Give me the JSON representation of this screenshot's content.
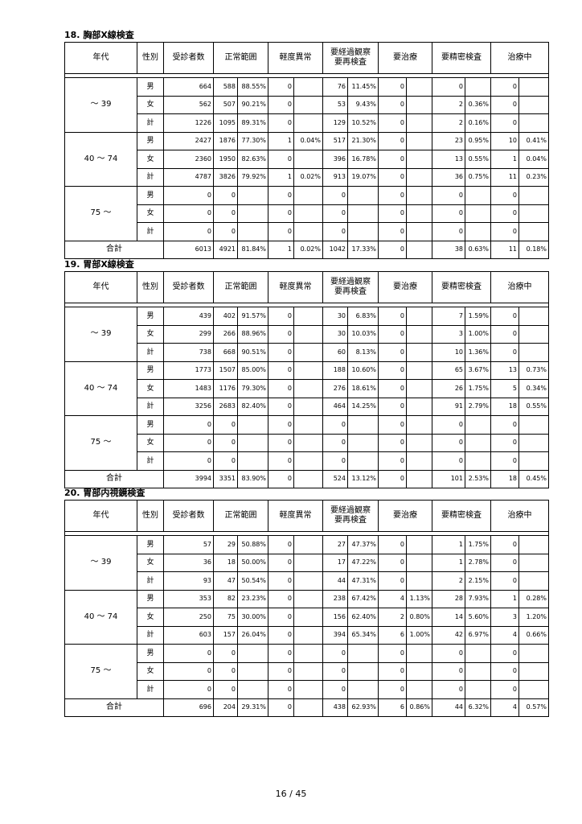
{
  "sections": [
    {
      "title": "18. 胸部X線検査",
      "header": [
        "年代",
        "性別",
        "受診者数",
        "正常範囲",
        "軽度異常",
        "要経過観察\n要再検査",
        "要治療",
        "要精密検査",
        "治療中"
      ],
      "groups": [
        {
          "label": "～ 39",
          "rows": [
            [
              "男",
              664,
              588,
              "88.55%",
              0,
              null,
              76,
              "11.45%",
              0,
              null,
              0,
              null,
              0,
              null
            ],
            [
              "女",
              562,
              507,
              "90.21%",
              0,
              null,
              53,
              "9.43%",
              0,
              null,
              2,
              "0.36%",
              0,
              null
            ],
            [
              "計",
              1226,
              1095,
              "89.31%",
              0,
              null,
              129,
              "10.52%",
              0,
              null,
              2,
              "0.16%",
              0,
              null
            ]
          ]
        },
        {
          "label": "40 ～ 74",
          "rows": [
            [
              "男",
              2427,
              1876,
              "77.30%",
              1,
              "0.04%",
              517,
              "21.30%",
              0,
              null,
              23,
              "0.95%",
              10,
              "0.41%"
            ],
            [
              "女",
              2360,
              1950,
              "82.63%",
              0,
              null,
              396,
              "16.78%",
              0,
              null,
              13,
              "0.55%",
              1,
              "0.04%"
            ],
            [
              "計",
              4787,
              3826,
              "79.92%",
              1,
              "0.02%",
              913,
              "19.07%",
              0,
              null,
              36,
              "0.75%",
              11,
              "0.23%"
            ]
          ]
        },
        {
          "label": "75 ～",
          "rows": [
            [
              "男",
              0,
              0,
              null,
              0,
              null,
              0,
              null,
              0,
              null,
              0,
              null,
              0,
              null
            ],
            [
              "女",
              0,
              0,
              null,
              0,
              null,
              0,
              null,
              0,
              null,
              0,
              null,
              0,
              null
            ],
            [
              "計",
              0,
              0,
              null,
              0,
              null,
              0,
              null,
              0,
              null,
              0,
              null,
              0,
              null
            ]
          ]
        }
      ],
      "total": {
        "label": "合計",
        "cells": [
          6013,
          4921,
          "81.84%",
          1,
          "0.02%",
          1042,
          "17.33%",
          0,
          null,
          38,
          "0.63%",
          11,
          "0.18%"
        ]
      }
    },
    {
      "title": "19. 胃部X線検査",
      "header": [
        "年代",
        "性別",
        "受診者数",
        "正常範囲",
        "軽度異常",
        "要経過観察\n要再検査",
        "要治療",
        "要精密検査",
        "治療中"
      ],
      "groups": [
        {
          "label": "～ 39",
          "rows": [
            [
              "男",
              439,
              402,
              "91.57%",
              0,
              null,
              30,
              "6.83%",
              0,
              null,
              7,
              "1.59%",
              0,
              null
            ],
            [
              "女",
              299,
              266,
              "88.96%",
              0,
              null,
              30,
              "10.03%",
              0,
              null,
              3,
              "1.00%",
              0,
              null
            ],
            [
              "計",
              738,
              668,
              "90.51%",
              0,
              null,
              60,
              "8.13%",
              0,
              null,
              10,
              "1.36%",
              0,
              null
            ]
          ]
        },
        {
          "label": "40 ～ 74",
          "rows": [
            [
              "男",
              1773,
              1507,
              "85.00%",
              0,
              null,
              188,
              "10.60%",
              0,
              null,
              65,
              "3.67%",
              13,
              "0.73%"
            ],
            [
              "女",
              1483,
              1176,
              "79.30%",
              0,
              null,
              276,
              "18.61%",
              0,
              null,
              26,
              "1.75%",
              5,
              "0.34%"
            ],
            [
              "計",
              3256,
              2683,
              "82.40%",
              0,
              null,
              464,
              "14.25%",
              0,
              null,
              91,
              "2.79%",
              18,
              "0.55%"
            ]
          ]
        },
        {
          "label": "75 ～",
          "rows": [
            [
              "男",
              0,
              0,
              null,
              0,
              null,
              0,
              null,
              0,
              null,
              0,
              null,
              0,
              null
            ],
            [
              "女",
              0,
              0,
              null,
              0,
              null,
              0,
              null,
              0,
              null,
              0,
              null,
              0,
              null
            ],
            [
              "計",
              0,
              0,
              null,
              0,
              null,
              0,
              null,
              0,
              null,
              0,
              null,
              0,
              null
            ]
          ]
        }
      ],
      "total": {
        "label": "合計",
        "cells": [
          3994,
          3351,
          "83.90%",
          0,
          null,
          524,
          "13.12%",
          0,
          null,
          101,
          "2.53%",
          18,
          "0.45%"
        ]
      }
    },
    {
      "title": "20. 胃部内視鏡検査",
      "header": [
        "年代",
        "性別",
        "受診者数",
        "正常範囲",
        "軽度異常",
        "要経過観察\n要再検査",
        "要治療",
        "要精密検査",
        "治療中"
      ],
      "groups": [
        {
          "label": "～ 39",
          "rows": [
            [
              "男",
              57,
              29,
              "50.88%",
              0,
              null,
              27,
              "47.37%",
              0,
              null,
              1,
              "1.75%",
              0,
              null
            ],
            [
              "女",
              36,
              18,
              "50.00%",
              0,
              null,
              17,
              "47.22%",
              0,
              null,
              1,
              "2.78%",
              0,
              null
            ],
            [
              "計",
              93,
              47,
              "50.54%",
              0,
              null,
              44,
              "47.31%",
              0,
              null,
              2,
              "2.15%",
              0,
              null
            ]
          ]
        },
        {
          "label": "40 ～ 74",
          "rows": [
            [
              "男",
              353,
              82,
              "23.23%",
              0,
              null,
              238,
              "67.42%",
              4,
              "1.13%",
              28,
              "7.93%",
              1,
              "0.28%"
            ],
            [
              "女",
              250,
              75,
              "30.00%",
              0,
              null,
              156,
              "62.40%",
              2,
              "0.80%",
              14,
              "5.60%",
              3,
              "1.20%"
            ],
            [
              "計",
              603,
              157,
              "26.04%",
              0,
              null,
              394,
              "65.34%",
              6,
              "1.00%",
              42,
              "6.97%",
              4,
              "0.66%"
            ]
          ]
        },
        {
          "label": "75 ～",
          "rows": [
            [
              "男",
              0,
              0,
              null,
              0,
              null,
              0,
              null,
              0,
              null,
              0,
              null,
              0,
              null
            ],
            [
              "女",
              0,
              0,
              null,
              0,
              null,
              0,
              null,
              0,
              null,
              0,
              null,
              0,
              null
            ],
            [
              "計",
              0,
              0,
              null,
              0,
              null,
              0,
              null,
              0,
              null,
              0,
              null,
              0,
              null
            ]
          ]
        }
      ],
      "total": {
        "label": "合計",
        "cells": [
          696,
          204,
          "29.31%",
          0,
          null,
          438,
          "62.93%",
          6,
          "0.86%",
          44,
          "6.32%",
          4,
          "0.57%"
        ]
      }
    }
  ],
  "footer": {
    "page": "16 / 45"
  }
}
